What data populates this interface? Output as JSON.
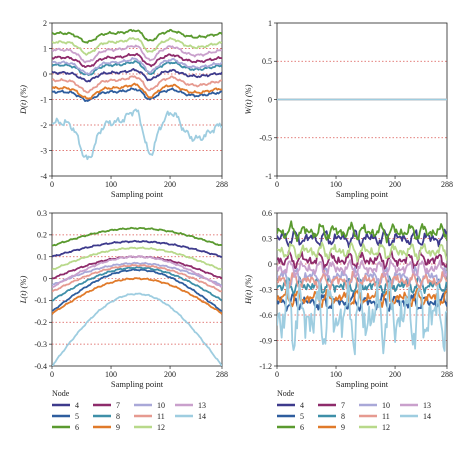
{
  "chart_data": [
    {
      "type": "line",
      "panel": "D",
      "ylabel": "D(t) (%)",
      "xlabel": "Sampling point",
      "xlim": [
        0,
        288
      ],
      "ylim": [
        -4,
        2
      ],
      "xticks": [
        "0",
        "100",
        "200",
        "288"
      ],
      "yticks": [
        "2",
        "1",
        "0",
        "-1",
        "-2",
        "-3",
        "-4"
      ],
      "grid": "dotted red horizontal lines",
      "series": [
        {
          "name": "4",
          "base": 0.05
        },
        {
          "name": "5",
          "base": -0.7
        },
        {
          "name": "6",
          "base": 1.6
        },
        {
          "name": "7",
          "base": 0.65
        },
        {
          "name": "8",
          "base": 0.35
        },
        {
          "name": "9",
          "base": -0.55
        },
        {
          "name": "10",
          "base": 0.45
        },
        {
          "name": "11",
          "base": -0.25
        },
        {
          "name": "12",
          "base": 1.25
        },
        {
          "name": "13",
          "base": 0.95
        },
        {
          "name": "14",
          "base": -1.9
        }
      ]
    },
    {
      "type": "line",
      "panel": "W",
      "ylabel": "W(t) (%)",
      "xlabel": "Sampling point",
      "xlim": [
        0,
        288
      ],
      "ylim": [
        -1,
        1
      ],
      "xticks": [
        "0",
        "100",
        "200",
        "288"
      ],
      "yticks": [
        "1",
        "0.5",
        "0",
        "-0.5",
        "-1"
      ],
      "grid": "dotted red horizontal lines",
      "series": [
        {
          "name": "4-14",
          "values": [
            0,
            0
          ]
        }
      ]
    },
    {
      "type": "line",
      "panel": "L",
      "ylabel": "L(t) (%)",
      "xlabel": "Sampling point",
      "xlim": [
        0,
        288
      ],
      "ylim": [
        -0.4,
        0.3
      ],
      "xticks": [
        "0",
        "100",
        "200",
        "288"
      ],
      "yticks": [
        "0.3",
        "0.2",
        "0.1",
        "0",
        "-0.1",
        "-0.2",
        "-0.3",
        "-0.4"
      ],
      "grid": "dotted red horizontal lines",
      "series": [
        {
          "name": "4",
          "start": 0.1,
          "peak": 0.17
        },
        {
          "name": "5",
          "start": -0.15,
          "peak": 0.04
        },
        {
          "name": "6",
          "start": 0.15,
          "peak": 0.23
        },
        {
          "name": "7",
          "start": 0.0,
          "peak": 0.1
        },
        {
          "name": "8",
          "start": -0.1,
          "peak": 0.05
        },
        {
          "name": "9",
          "start": -0.16,
          "peak": 0.0
        },
        {
          "name": "10",
          "start": -0.03,
          "peak": 0.07
        },
        {
          "name": "11",
          "start": -0.06,
          "peak": 0.06
        },
        {
          "name": "12",
          "start": 0.04,
          "peak": 0.14
        },
        {
          "name": "13",
          "start": -0.04,
          "peak": 0.1
        },
        {
          "name": "14",
          "start": -0.4,
          "peak": -0.07
        }
      ]
    },
    {
      "type": "line",
      "panel": "H",
      "ylabel": "H(t) (%)",
      "xlabel": "Sampling point",
      "xlim": [
        0,
        288
      ],
      "ylim": [
        -1.2,
        0.6
      ],
      "xticks": [
        "0",
        "100",
        "200",
        "288"
      ],
      "yticks": [
        "0.6",
        "0.3",
        "0",
        "-0.3",
        "-0.6",
        "-0.9",
        "-1.2"
      ],
      "grid": "dotted red horizontal lines",
      "series": [
        {
          "name": "4",
          "base": 0.3
        },
        {
          "name": "5",
          "base": -0.45
        },
        {
          "name": "6",
          "base": 0.38
        },
        {
          "name": "7",
          "base": 0.05
        },
        {
          "name": "8",
          "base": -0.25
        },
        {
          "name": "9",
          "base": -0.4
        },
        {
          "name": "10",
          "base": -0.15
        },
        {
          "name": "11",
          "base": -0.2
        },
        {
          "name": "12",
          "base": 0.15
        },
        {
          "name": "13",
          "base": -0.05
        },
        {
          "name": "14",
          "base": -0.6
        }
      ]
    }
  ],
  "legend": {
    "title": "Node",
    "items": [
      {
        "name": "4",
        "color": "#3d3a8c"
      },
      {
        "name": "5",
        "color": "#2e5d9e"
      },
      {
        "name": "6",
        "color": "#5a9a2f"
      },
      {
        "name": "7",
        "color": "#8e2b6b"
      },
      {
        "name": "8",
        "color": "#3e8fa8"
      },
      {
        "name": "9",
        "color": "#e07a2a"
      },
      {
        "name": "10",
        "color": "#a9a8d8"
      },
      {
        "name": "11",
        "color": "#e69a90"
      },
      {
        "name": "12",
        "color": "#b8d98a"
      },
      {
        "name": "13",
        "color": "#c9a0cc"
      },
      {
        "name": "14",
        "color": "#9ecde0"
      }
    ]
  },
  "colors": {
    "grid": "#d9534f",
    "axis": "#222222"
  }
}
